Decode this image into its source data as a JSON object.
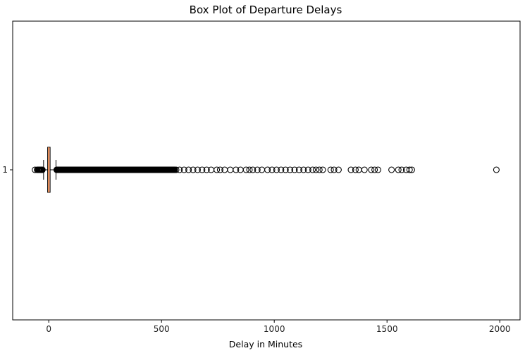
{
  "chart_data": {
    "type": "box",
    "orientation": "horizontal",
    "title": "Box Plot of Departure Delays",
    "xlabel": "Delay in Minutes",
    "ylabel": "",
    "xlim": [
      -160,
      2090
    ],
    "x_ticks": [
      0,
      500,
      1000,
      1500,
      2000
    ],
    "x_tick_labels": [
      "0",
      "500",
      "1000",
      "1500",
      "2000"
    ],
    "y_tick_labels": [
      "1"
    ],
    "grid": false,
    "legend": "none",
    "box": {
      "category": "1",
      "whisker_low": -23,
      "q1": -5,
      "median": 0,
      "q3": 6,
      "whisker_high": 32,
      "box_fill": "#f5c6c6",
      "median_color": "#f08030"
    },
    "outliers_dense_range": [
      35,
      560
    ],
    "outliers_low_dense_range": [
      -48,
      -28
    ],
    "outliers": [
      -61,
      -52,
      565,
      580,
      600,
      620,
      640,
      660,
      680,
      700,
      720,
      745,
      760,
      780,
      805,
      830,
      850,
      875,
      890,
      905,
      925,
      945,
      970,
      990,
      1010,
      1030,
      1050,
      1070,
      1090,
      1110,
      1130,
      1150,
      1170,
      1185,
      1200,
      1215,
      1250,
      1265,
      1285,
      1340,
      1360,
      1375,
      1400,
      1430,
      1445,
      1460,
      1520,
      1550,
      1565,
      1585,
      1600,
      1610,
      1985
    ]
  }
}
